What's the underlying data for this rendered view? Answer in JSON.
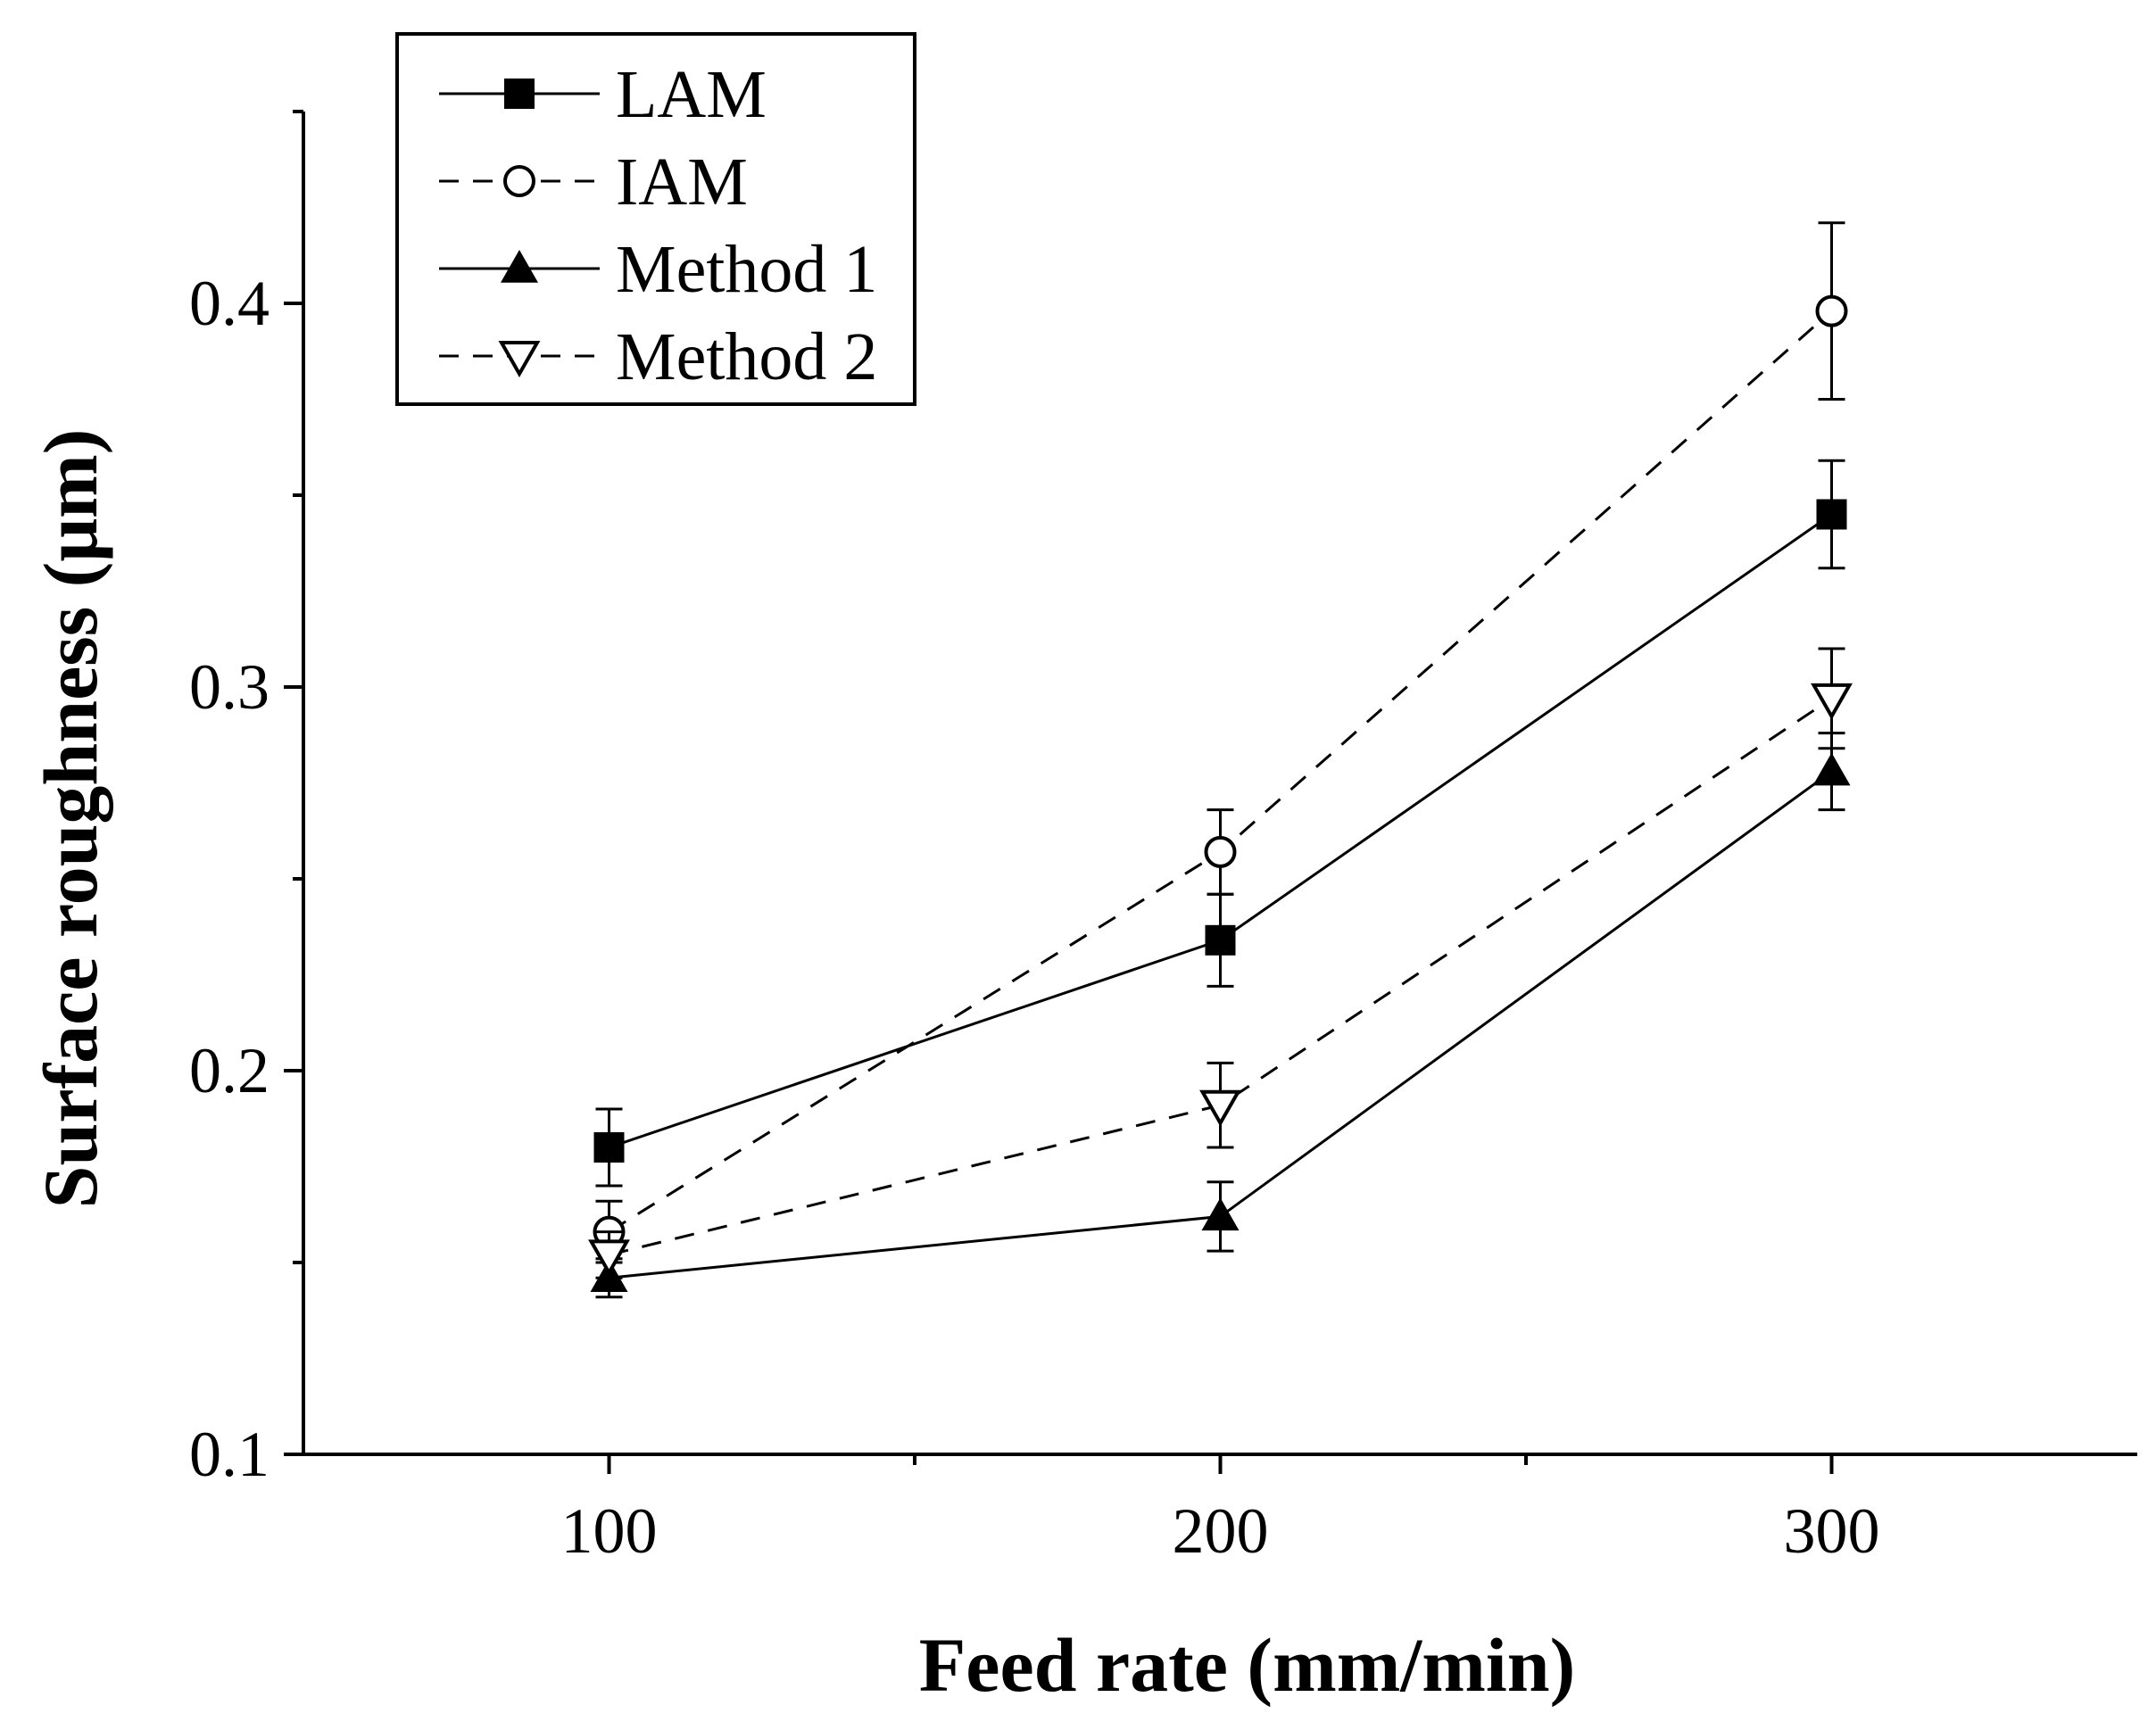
{
  "chart_data": {
    "type": "line",
    "title": "",
    "xlabel": "Feed rate (mm/min)",
    "ylabel": "Surface roughness (μm)",
    "x": [
      100,
      200,
      300
    ],
    "xlim": [
      50,
      350
    ],
    "ylim": [
      0.1,
      0.45
    ],
    "xticks": [
      100,
      200,
      300
    ],
    "xtick_labels": [
      "100",
      "200",
      "300"
    ],
    "xminor": [
      150,
      250
    ],
    "yticks": [
      0.1,
      0.2,
      0.3,
      0.4
    ],
    "ytick_labels": [
      "0.1",
      "0.2",
      "0.3",
      "0.4"
    ],
    "legend_position": "top-left",
    "series": [
      {
        "name": "LAM",
        "marker": "square-filled",
        "line": "solid",
        "values": [
          0.18,
          0.234,
          0.345
        ],
        "errors": [
          0.01,
          0.012,
          0.014
        ]
      },
      {
        "name": "IAM",
        "marker": "circle-open",
        "line": "dashed",
        "values": [
          0.158,
          0.257,
          0.398
        ],
        "errors": [
          0.008,
          0.011,
          0.023
        ]
      },
      {
        "name": "Method 1",
        "marker": "triangle-up-filled",
        "line": "solid",
        "values": [
          0.146,
          0.162,
          0.278
        ],
        "errors": [
          0.005,
          0.009,
          0.01
        ]
      },
      {
        "name": "Method 2",
        "marker": "triangle-down-open",
        "line": "dashed",
        "values": [
          0.152,
          0.191,
          0.297
        ],
        "errors": [
          0.006,
          0.011,
          0.013
        ]
      }
    ],
    "colors": {
      "line": "#000000",
      "background": "#ffffff"
    }
  }
}
